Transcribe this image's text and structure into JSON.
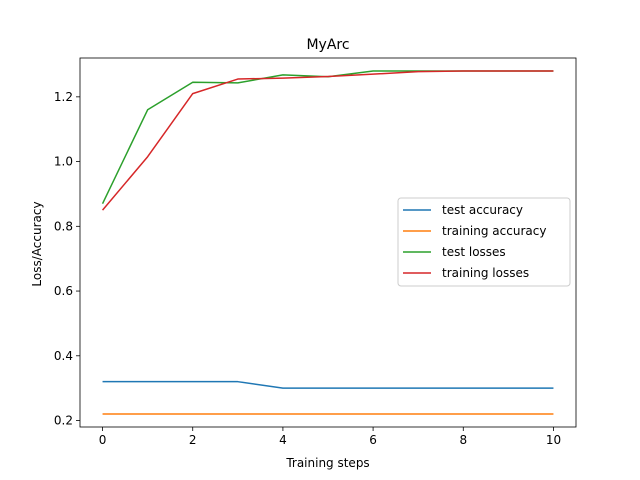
{
  "chart_data": {
    "type": "line",
    "title": "MyArc",
    "xlabel": "Training steps",
    "ylabel": "Loss/Accuracy",
    "xlim": [
      -0.5,
      10.5
    ],
    "ylim": [
      0.18,
      1.32
    ],
    "x_ticks": [
      "0",
      "2",
      "4",
      "6",
      "8",
      "10"
    ],
    "y_ticks": [
      "0.2",
      "0.4",
      "0.6",
      "0.8",
      "1.0",
      "1.2"
    ],
    "grid": false,
    "legend_position": "center-right",
    "x": [
      0,
      1,
      2,
      3,
      4,
      5,
      6,
      7,
      8,
      9,
      10
    ],
    "series": [
      {
        "name": "test accuracy",
        "color": "#1f77b4",
        "values": [
          0.32,
          0.32,
          0.32,
          0.32,
          0.3,
          0.3,
          0.3,
          0.3,
          0.3,
          0.3,
          0.3
        ]
      },
      {
        "name": "training accuracy",
        "color": "#ff7f0e",
        "values": [
          0.22,
          0.22,
          0.22,
          0.22,
          0.22,
          0.22,
          0.22,
          0.22,
          0.22,
          0.22,
          0.22
        ]
      },
      {
        "name": "test losses",
        "color": "#2ca02c",
        "values": [
          0.87,
          1.16,
          1.245,
          1.243,
          1.268,
          1.262,
          1.28,
          1.28,
          1.28,
          1.28,
          1.28
        ]
      },
      {
        "name": "training losses",
        "color": "#d62728",
        "values": [
          0.85,
          1.015,
          1.21,
          1.255,
          1.258,
          1.263,
          1.27,
          1.278,
          1.28,
          1.28,
          1.28
        ]
      }
    ]
  }
}
